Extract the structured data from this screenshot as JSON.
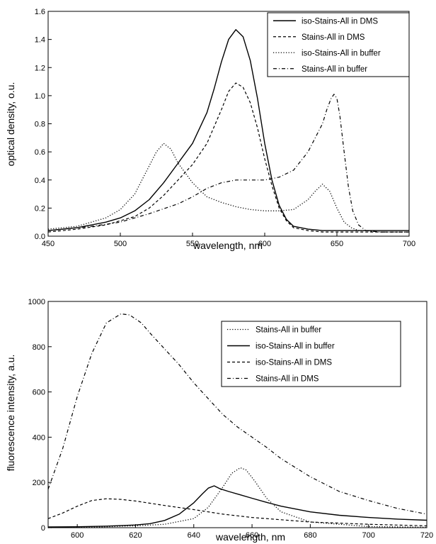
{
  "chart_data": [
    {
      "type": "line",
      "title": "",
      "xlabel": "wavelength, nm",
      "ylabel": "optical density, o.u.",
      "xlim": [
        450,
        700
      ],
      "ylim": [
        0.0,
        1.6
      ],
      "xticks": [
        "450",
        "500",
        "550",
        "600",
        "650",
        "700"
      ],
      "yticks": [
        "0.0",
        "0.2",
        "0.4",
        "0.6",
        "0.8",
        "1.0",
        "1.2",
        "1.4",
        "1.6"
      ],
      "grid": false,
      "legend_position": "top-right",
      "series": [
        {
          "name": "iso-Stains-All in DMS",
          "style": "solid",
          "color": "#000000",
          "x": [
            450,
            470,
            490,
            500,
            510,
            520,
            530,
            540,
            550,
            560,
            565,
            570,
            575,
            580,
            585,
            590,
            595,
            600,
            605,
            610,
            615,
            620,
            630,
            640,
            650,
            660,
            700
          ],
          "y": [
            0.04,
            0.06,
            0.1,
            0.13,
            0.18,
            0.26,
            0.38,
            0.52,
            0.66,
            0.88,
            1.05,
            1.24,
            1.4,
            1.47,
            1.42,
            1.25,
            0.98,
            0.66,
            0.4,
            0.22,
            0.12,
            0.07,
            0.05,
            0.04,
            0.04,
            0.04,
            0.04
          ]
        },
        {
          "name": "Stains-All in DMS",
          "style": "dashed",
          "color": "#000000",
          "x": [
            450,
            470,
            490,
            500,
            510,
            520,
            530,
            540,
            550,
            560,
            570,
            575,
            580,
            585,
            590,
            595,
            600,
            605,
            610,
            615,
            620,
            630,
            640,
            650,
            700
          ],
          "y": [
            0.03,
            0.05,
            0.08,
            0.11,
            0.14,
            0.2,
            0.29,
            0.4,
            0.51,
            0.66,
            0.9,
            1.03,
            1.09,
            1.06,
            0.95,
            0.77,
            0.55,
            0.36,
            0.2,
            0.11,
            0.06,
            0.04,
            0.03,
            0.03,
            0.03
          ]
        },
        {
          "name": "iso-Stains-All in buffer",
          "style": "dotted",
          "color": "#000000",
          "x": [
            450,
            470,
            490,
            500,
            510,
            520,
            525,
            530,
            535,
            540,
            550,
            560,
            570,
            580,
            590,
            600,
            610,
            620,
            630,
            635,
            640,
            645,
            650,
            655,
            660,
            665,
            670,
            680,
            700
          ],
          "y": [
            0.05,
            0.07,
            0.13,
            0.19,
            0.3,
            0.5,
            0.6,
            0.66,
            0.62,
            0.52,
            0.38,
            0.28,
            0.24,
            0.21,
            0.19,
            0.18,
            0.18,
            0.19,
            0.26,
            0.32,
            0.37,
            0.32,
            0.2,
            0.1,
            0.06,
            0.04,
            0.04,
            0.03,
            0.03
          ]
        },
        {
          "name": "Stains-All in buffer",
          "style": "dashdot",
          "color": "#000000",
          "x": [
            450,
            480,
            500,
            520,
            540,
            550,
            560,
            570,
            580,
            590,
            600,
            610,
            620,
            630,
            635,
            640,
            643,
            646,
            648,
            650,
            652,
            655,
            658,
            661,
            665,
            670,
            680,
            700
          ],
          "y": [
            0.04,
            0.07,
            0.1,
            0.16,
            0.23,
            0.28,
            0.34,
            0.38,
            0.4,
            0.4,
            0.4,
            0.42,
            0.47,
            0.6,
            0.7,
            0.8,
            0.9,
            0.98,
            1.01,
            0.98,
            0.86,
            0.6,
            0.35,
            0.18,
            0.08,
            0.04,
            0.03,
            0.03
          ]
        }
      ]
    },
    {
      "type": "line",
      "title": "",
      "xlabel": "wavelength, nm",
      "ylabel": "fluorescence intensity, a.u.",
      "xlim": [
        590,
        720
      ],
      "ylim": [
        0,
        1000
      ],
      "xticks": [
        "600",
        "620",
        "640",
        "660",
        "680",
        "700",
        "720"
      ],
      "yticks": [
        "0",
        "200",
        "400",
        "600",
        "800",
        "1000"
      ],
      "grid": false,
      "legend_position": "top-right",
      "series": [
        {
          "name": "Stains-All in buffer",
          "style": "dotted",
          "color": "#000000",
          "x": [
            590,
            600,
            610,
            620,
            630,
            640,
            645,
            650,
            653,
            656,
            658,
            661,
            665,
            670,
            680,
            700,
            720
          ],
          "y": [
            0,
            2,
            4,
            8,
            15,
            40,
            90,
            180,
            240,
            265,
            255,
            205,
            130,
            70,
            25,
            5,
            2
          ]
        },
        {
          "name": "iso-Stains-All in buffer",
          "style": "solid",
          "color": "#000000",
          "x": [
            590,
            600,
            610,
            620,
            625,
            630,
            635,
            640,
            643,
            645,
            647,
            649,
            652,
            656,
            660,
            665,
            670,
            680,
            690,
            700,
            710,
            720
          ],
          "y": [
            3,
            4,
            7,
            12,
            18,
            32,
            60,
            110,
            150,
            175,
            185,
            172,
            160,
            145,
            130,
            112,
            95,
            70,
            55,
            45,
            38,
            33
          ]
        },
        {
          "name": "iso-Stains-All in DMS",
          "style": "dashed",
          "color": "#000000",
          "x": [
            590,
            595,
            600,
            605,
            610,
            615,
            620,
            630,
            640,
            650,
            660,
            670,
            680,
            700,
            720
          ],
          "y": [
            40,
            65,
            95,
            120,
            128,
            125,
            118,
            98,
            80,
            60,
            45,
            35,
            25,
            15,
            8
          ]
        },
        {
          "name": "Stains-All in DMS",
          "style": "dashdot",
          "color": "#000000",
          "x": [
            590,
            595,
            600,
            605,
            610,
            615,
            618,
            622,
            625,
            630,
            635,
            640,
            645,
            650,
            655,
            660,
            665,
            670,
            680,
            690,
            700,
            710,
            720
          ],
          "y": [
            170,
            350,
            580,
            770,
            905,
            945,
            940,
            905,
            860,
            790,
            720,
            640,
            570,
            500,
            445,
            400,
            355,
            305,
            225,
            160,
            120,
            85,
            60
          ]
        }
      ]
    }
  ]
}
